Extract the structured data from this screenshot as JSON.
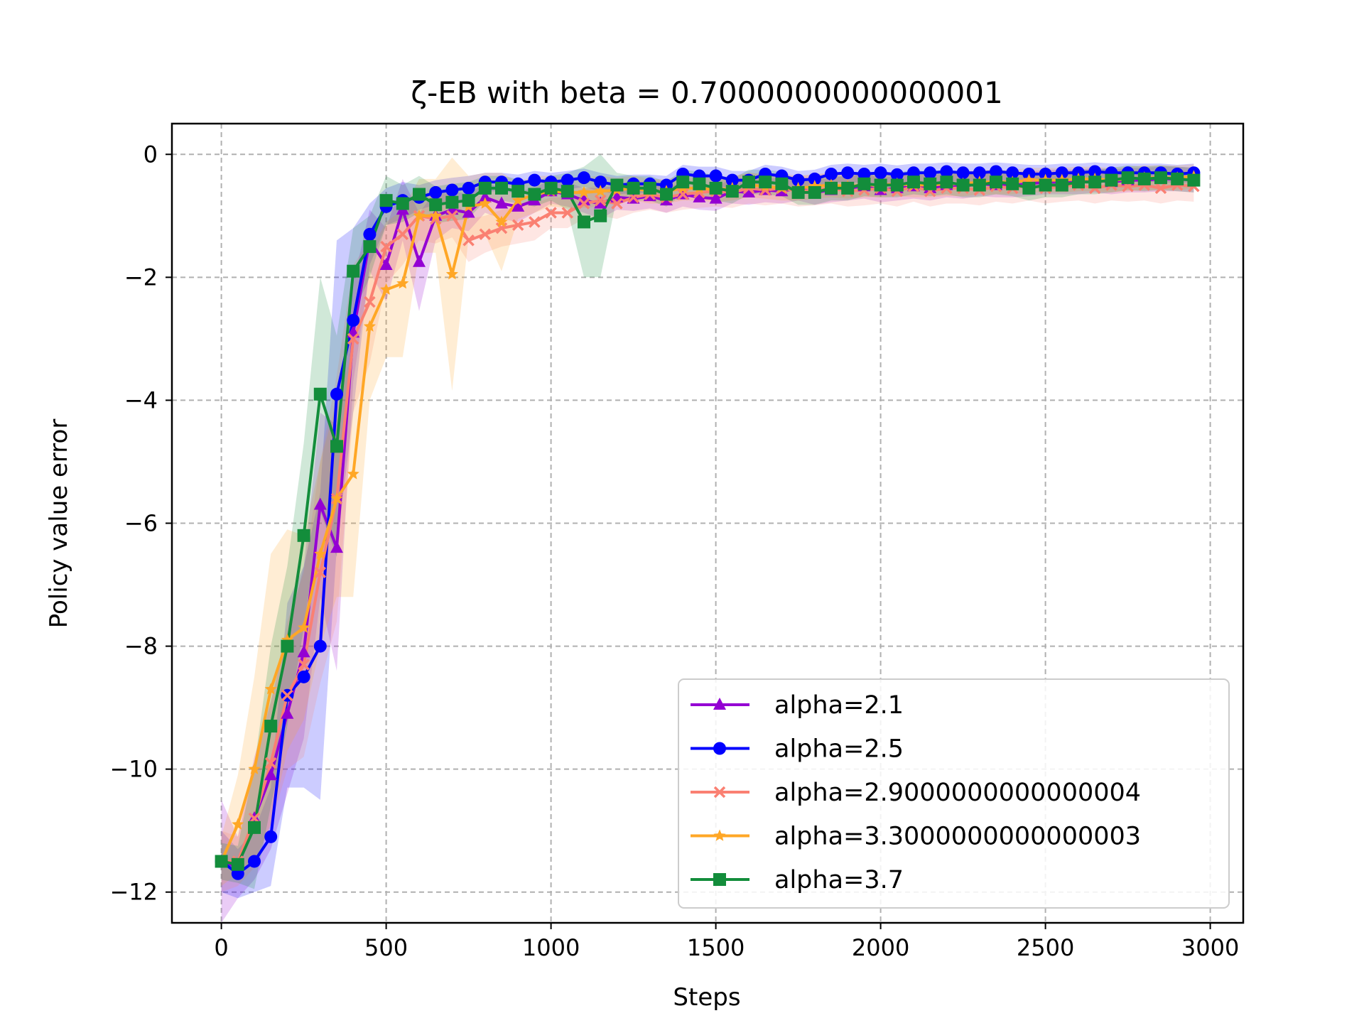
{
  "chart_data": {
    "type": "line",
    "title": "ζ-EB with beta = 0.7000000000000001",
    "xlabel": "Steps",
    "ylabel": "Policy value error",
    "xlim": [
      -150,
      3100
    ],
    "ylim": [
      -12.5,
      0.5
    ],
    "xticks": [
      0,
      500,
      1000,
      1500,
      2000,
      2500,
      3000
    ],
    "yticks": [
      0,
      -2,
      -4,
      -6,
      -8,
      -10,
      -12
    ],
    "xtick_labels": [
      "0",
      "500",
      "1000",
      "1500",
      "2000",
      "2500",
      "3000"
    ],
    "ytick_labels": [
      "0",
      "−2",
      "−4",
      "−6",
      "−8",
      "−10",
      "−12"
    ],
    "grid": true,
    "legend_position": "lower right",
    "x": [
      0,
      50,
      100,
      150,
      200,
      250,
      300,
      350,
      400,
      450,
      500,
      550,
      600,
      650,
      700,
      750,
      800,
      850,
      900,
      950,
      1000,
      1050,
      1100,
      1150,
      1200,
      1250,
      1300,
      1350,
      1400,
      1450,
      1500,
      1550,
      1600,
      1650,
      1700,
      1750,
      1800,
      1850,
      1900,
      1950,
      2000,
      2050,
      2100,
      2150,
      2200,
      2250,
      2300,
      2350,
      2400,
      2450,
      2500,
      2550,
      2600,
      2650,
      2700,
      2750,
      2800,
      2850,
      2900,
      2950
    ],
    "series": [
      {
        "name": "alpha=2.1",
        "color": "#9400d3",
        "marker": "triangle",
        "values": [
          -11.5,
          -11.6,
          -10.8,
          -10.1,
          -9.1,
          -8.1,
          -5.7,
          -6.4,
          -2.9,
          -1.4,
          -1.8,
          -0.9,
          -1.75,
          -1.0,
          -0.9,
          -0.95,
          -0.7,
          -0.8,
          -0.85,
          -0.75,
          -0.6,
          -0.65,
          -0.75,
          -0.8,
          -0.7,
          -0.72,
          -0.68,
          -0.75,
          -0.65,
          -0.7,
          -0.72,
          -0.6,
          -0.62,
          -0.58,
          -0.6,
          -0.55,
          -0.62,
          -0.58,
          -0.55,
          -0.52,
          -0.58,
          -0.55,
          -0.52,
          -0.55,
          -0.5,
          -0.52,
          -0.48,
          -0.5,
          -0.5,
          -0.48,
          -0.45,
          -0.45,
          -0.45,
          -0.42,
          -0.45,
          -0.42,
          -0.42,
          -0.4,
          -0.4,
          -0.42
        ],
        "band": [
          1.0,
          0.5,
          1.0,
          1.2,
          1.3,
          1.4,
          1.5,
          2.0,
          0.8,
          0.5,
          0.6,
          0.5,
          0.8,
          0.4,
          0.3,
          0.3,
          0.25,
          0.25,
          0.25,
          0.2,
          0.2,
          0.2,
          0.2,
          0.25,
          0.2,
          0.2,
          0.2,
          0.2,
          0.2,
          0.2,
          0.2,
          0.2,
          0.2,
          0.2,
          0.2,
          0.2,
          0.2,
          0.2,
          0.2,
          0.2,
          0.2,
          0.2,
          0.2,
          0.2,
          0.2,
          0.2,
          0.2,
          0.2,
          0.2,
          0.2,
          0.2,
          0.2,
          0.2,
          0.2,
          0.2,
          0.2,
          0.2,
          0.2,
          0.2,
          0.2
        ]
      },
      {
        "name": "alpha=2.5",
        "color": "#0000ff",
        "marker": "circle",
        "values": [
          -11.5,
          -11.7,
          -11.5,
          -11.1,
          -8.8,
          -8.5,
          -8.0,
          -3.9,
          -2.7,
          -1.3,
          -0.85,
          -0.75,
          -0.7,
          -0.62,
          -0.58,
          -0.55,
          -0.45,
          -0.45,
          -0.48,
          -0.42,
          -0.45,
          -0.42,
          -0.38,
          -0.45,
          -0.5,
          -0.48,
          -0.48,
          -0.5,
          -0.32,
          -0.35,
          -0.35,
          -0.42,
          -0.42,
          -0.32,
          -0.35,
          -0.42,
          -0.4,
          -0.32,
          -0.3,
          -0.32,
          -0.3,
          -0.33,
          -0.3,
          -0.3,
          -0.28,
          -0.3,
          -0.3,
          -0.28,
          -0.3,
          -0.32,
          -0.32,
          -0.3,
          -0.3,
          -0.28,
          -0.3,
          -0.3,
          -0.3,
          -0.3,
          -0.32,
          -0.3
        ],
        "band": [
          0.5,
          0.4,
          0.5,
          0.8,
          1.5,
          1.8,
          2.5,
          2.5,
          1.5,
          0.5,
          0.3,
          0.3,
          0.2,
          0.2,
          0.2,
          0.2,
          0.15,
          0.15,
          0.15,
          0.15,
          0.15,
          0.15,
          0.15,
          0.15,
          0.15,
          0.15,
          0.15,
          0.15,
          0.15,
          0.15,
          0.15,
          0.15,
          0.15,
          0.15,
          0.15,
          0.15,
          0.15,
          0.15,
          0.15,
          0.15,
          0.15,
          0.15,
          0.15,
          0.15,
          0.15,
          0.15,
          0.15,
          0.15,
          0.15,
          0.15,
          0.15,
          0.15,
          0.15,
          0.15,
          0.15,
          0.15,
          0.15,
          0.15,
          0.15,
          0.15
        ]
      },
      {
        "name": "alpha=2.9000000000000004",
        "color": "#fa8072",
        "marker": "x",
        "values": [
          -11.5,
          -11.5,
          -10.8,
          -9.9,
          -8.8,
          -8.3,
          -6.8,
          -5.6,
          -3.0,
          -2.4,
          -1.5,
          -1.3,
          -1.0,
          -1.05,
          -1.0,
          -1.4,
          -1.3,
          -1.2,
          -1.15,
          -1.1,
          -0.95,
          -0.95,
          -0.8,
          -0.75,
          -0.8,
          -0.7,
          -0.65,
          -0.7,
          -0.65,
          -0.62,
          -0.6,
          -0.62,
          -0.55,
          -0.58,
          -0.55,
          -0.6,
          -0.58,
          -0.55,
          -0.6,
          -0.58,
          -0.55,
          -0.6,
          -0.52,
          -0.6,
          -0.55,
          -0.55,
          -0.58,
          -0.52,
          -0.55,
          -0.5,
          -0.55,
          -0.52,
          -0.5,
          -0.55,
          -0.5,
          -0.52,
          -0.5,
          -0.55,
          -0.5,
          -0.52
        ],
        "band": [
          0.5,
          0.4,
          0.8,
          1.0,
          1.2,
          1.5,
          1.8,
          2.0,
          1.2,
          1.0,
          0.6,
          0.5,
          0.4,
          0.4,
          0.35,
          0.35,
          0.3,
          0.3,
          0.3,
          0.3,
          0.25,
          0.25,
          0.25,
          0.25,
          0.25,
          0.25,
          0.25,
          0.25,
          0.25,
          0.25,
          0.25,
          0.25,
          0.25,
          0.25,
          0.25,
          0.25,
          0.25,
          0.25,
          0.25,
          0.25,
          0.25,
          0.25,
          0.25,
          0.25,
          0.25,
          0.25,
          0.25,
          0.25,
          0.25,
          0.25,
          0.25,
          0.25,
          0.25,
          0.25,
          0.25,
          0.25,
          0.25,
          0.25,
          0.25,
          0.25
        ]
      },
      {
        "name": "alpha=3.3000000000000003",
        "color": "#ffa726",
        "marker": "star",
        "values": [
          -11.5,
          -10.9,
          -10.0,
          -8.7,
          -7.9,
          -7.7,
          -6.5,
          -5.6,
          -5.2,
          -2.8,
          -2.2,
          -2.1,
          -1.0,
          -1.0,
          -1.95,
          -0.85,
          -0.8,
          -1.1,
          -0.75,
          -0.65,
          -0.6,
          -0.62,
          -0.62,
          -0.6,
          -0.58,
          -0.55,
          -0.6,
          -0.6,
          -0.55,
          -0.55,
          -0.58,
          -0.55,
          -0.5,
          -0.52,
          -0.55,
          -0.55,
          -0.52,
          -0.5,
          -0.52,
          -0.5,
          -0.5,
          -0.48,
          -0.5,
          -0.5,
          -0.48,
          -0.48,
          -0.45,
          -0.45,
          -0.45,
          -0.42,
          -0.42,
          -0.42,
          -0.4,
          -0.4,
          -0.42,
          -0.4,
          -0.38,
          -0.38,
          -0.38,
          -0.36
        ],
        "band": [
          0.4,
          0.8,
          1.5,
          2.2,
          1.8,
          1.5,
          1.5,
          1.6,
          2.0,
          1.2,
          1.1,
          1.2,
          0.6,
          0.6,
          1.9,
          0.5,
          0.5,
          0.8,
          0.3,
          0.3,
          0.25,
          0.25,
          0.25,
          0.25,
          0.2,
          0.2,
          0.2,
          0.2,
          0.2,
          0.2,
          0.2,
          0.2,
          0.2,
          0.2,
          0.2,
          0.2,
          0.2,
          0.2,
          0.2,
          0.2,
          0.2,
          0.2,
          0.2,
          0.2,
          0.2,
          0.2,
          0.2,
          0.2,
          0.2,
          0.2,
          0.2,
          0.2,
          0.2,
          0.2,
          0.2,
          0.2,
          0.2,
          0.2,
          0.2,
          0.2
        ]
      },
      {
        "name": "alpha=3.7",
        "color": "#138d3b",
        "marker": "square",
        "values": [
          -11.5,
          -11.55,
          -10.95,
          -9.3,
          -8.0,
          -6.2,
          -3.9,
          -4.75,
          -1.9,
          -1.5,
          -0.75,
          -0.8,
          -0.65,
          -0.82,
          -0.78,
          -0.75,
          -0.55,
          -0.55,
          -0.6,
          -0.65,
          -0.55,
          -0.6,
          -1.1,
          -1.0,
          -0.5,
          -0.55,
          -0.55,
          -0.65,
          -0.45,
          -0.48,
          -0.55,
          -0.6,
          -0.45,
          -0.45,
          -0.48,
          -0.62,
          -0.62,
          -0.55,
          -0.55,
          -0.48,
          -0.5,
          -0.5,
          -0.45,
          -0.48,
          -0.45,
          -0.5,
          -0.5,
          -0.45,
          -0.48,
          -0.55,
          -0.5,
          -0.5,
          -0.45,
          -0.45,
          -0.42,
          -0.38,
          -0.4,
          -0.38,
          -0.4,
          -0.42
        ],
        "band": [
          0.3,
          0.3,
          1.0,
          1.3,
          1.3,
          1.5,
          1.9,
          1.8,
          0.7,
          0.5,
          0.4,
          0.3,
          0.3,
          0.3,
          0.3,
          0.3,
          0.2,
          0.2,
          0.2,
          0.2,
          0.2,
          0.3,
          0.9,
          1.0,
          0.2,
          0.2,
          0.2,
          0.2,
          0.2,
          0.2,
          0.2,
          0.2,
          0.2,
          0.2,
          0.2,
          0.2,
          0.2,
          0.2,
          0.2,
          0.2,
          0.2,
          0.2,
          0.2,
          0.2,
          0.2,
          0.2,
          0.2,
          0.2,
          0.2,
          0.2,
          0.2,
          0.2,
          0.2,
          0.2,
          0.2,
          0.2,
          0.2,
          0.2,
          0.2,
          0.2
        ]
      }
    ]
  }
}
